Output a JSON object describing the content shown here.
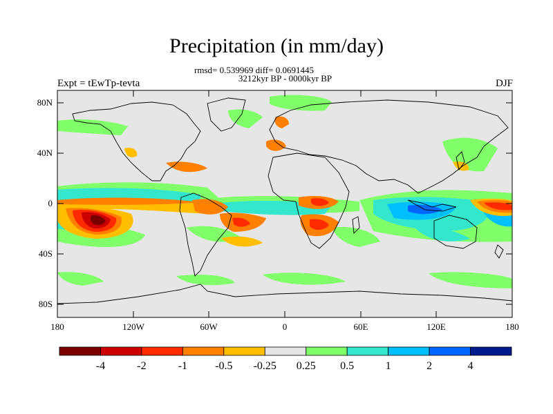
{
  "title": "Precipitation (in mm/day)",
  "stats": "rmsd= 0.539969 diff= 0.0691445",
  "period": "3212kyr BP - 0000kyr BP",
  "experiment": "Expt = tEwTp-tevta",
  "season": "DJF",
  "lat_ticks": [
    "80N",
    "40N",
    "0",
    "40S",
    "80S"
  ],
  "lon_ticks": [
    "180",
    "120W",
    "60W",
    "0",
    "60E",
    "120E",
    "180"
  ],
  "colorbar": {
    "colors": [
      "#7a0000",
      "#cc0000",
      "#ff2a00",
      "#ff7f00",
      "#ffbf00",
      "#e6e6e6",
      "#80ff6a",
      "#33e6cc",
      "#00bfff",
      "#0066ff",
      "#001a8c"
    ],
    "labels": [
      "-4",
      "-2",
      "-1",
      "-0.5",
      "-0.25",
      "0.25",
      "0.5",
      "1",
      "2",
      "4"
    ]
  },
  "colors": {
    "background": "#e6e6e6",
    "coast": "#000000"
  }
}
